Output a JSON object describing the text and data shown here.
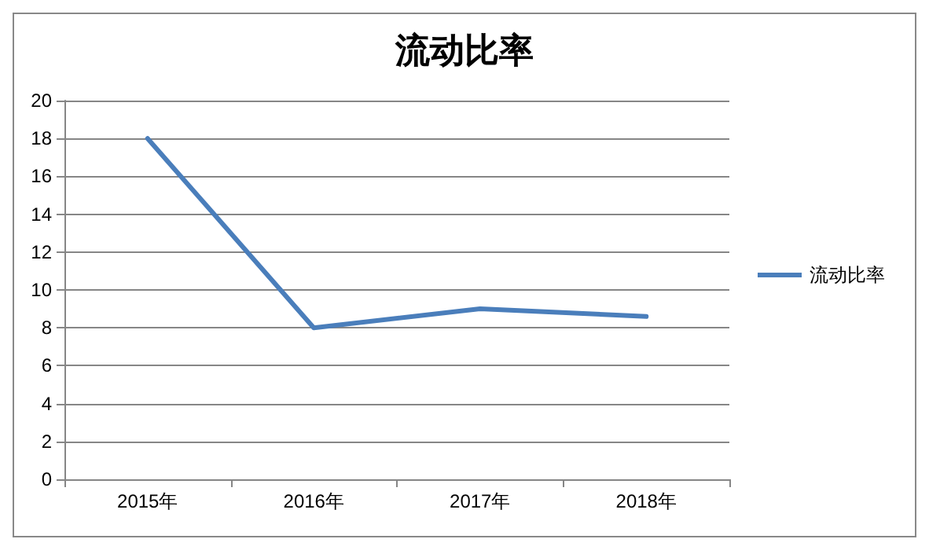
{
  "chart_data": {
    "type": "line",
    "title": "流动比率",
    "categories": [
      "2015年",
      "2016年",
      "2017年",
      "2018年"
    ],
    "series": [
      {
        "name": "流动比率",
        "color": "#4a7ebb",
        "values": [
          18,
          8.0,
          9.0,
          8.6
        ]
      }
    ],
    "ylim": [
      0,
      20
    ],
    "yticks": [
      0,
      2,
      4,
      6,
      8,
      10,
      12,
      14,
      16,
      18,
      20
    ],
    "grid": "y",
    "legend": "right",
    "marker": "none",
    "line_style": "solid"
  }
}
